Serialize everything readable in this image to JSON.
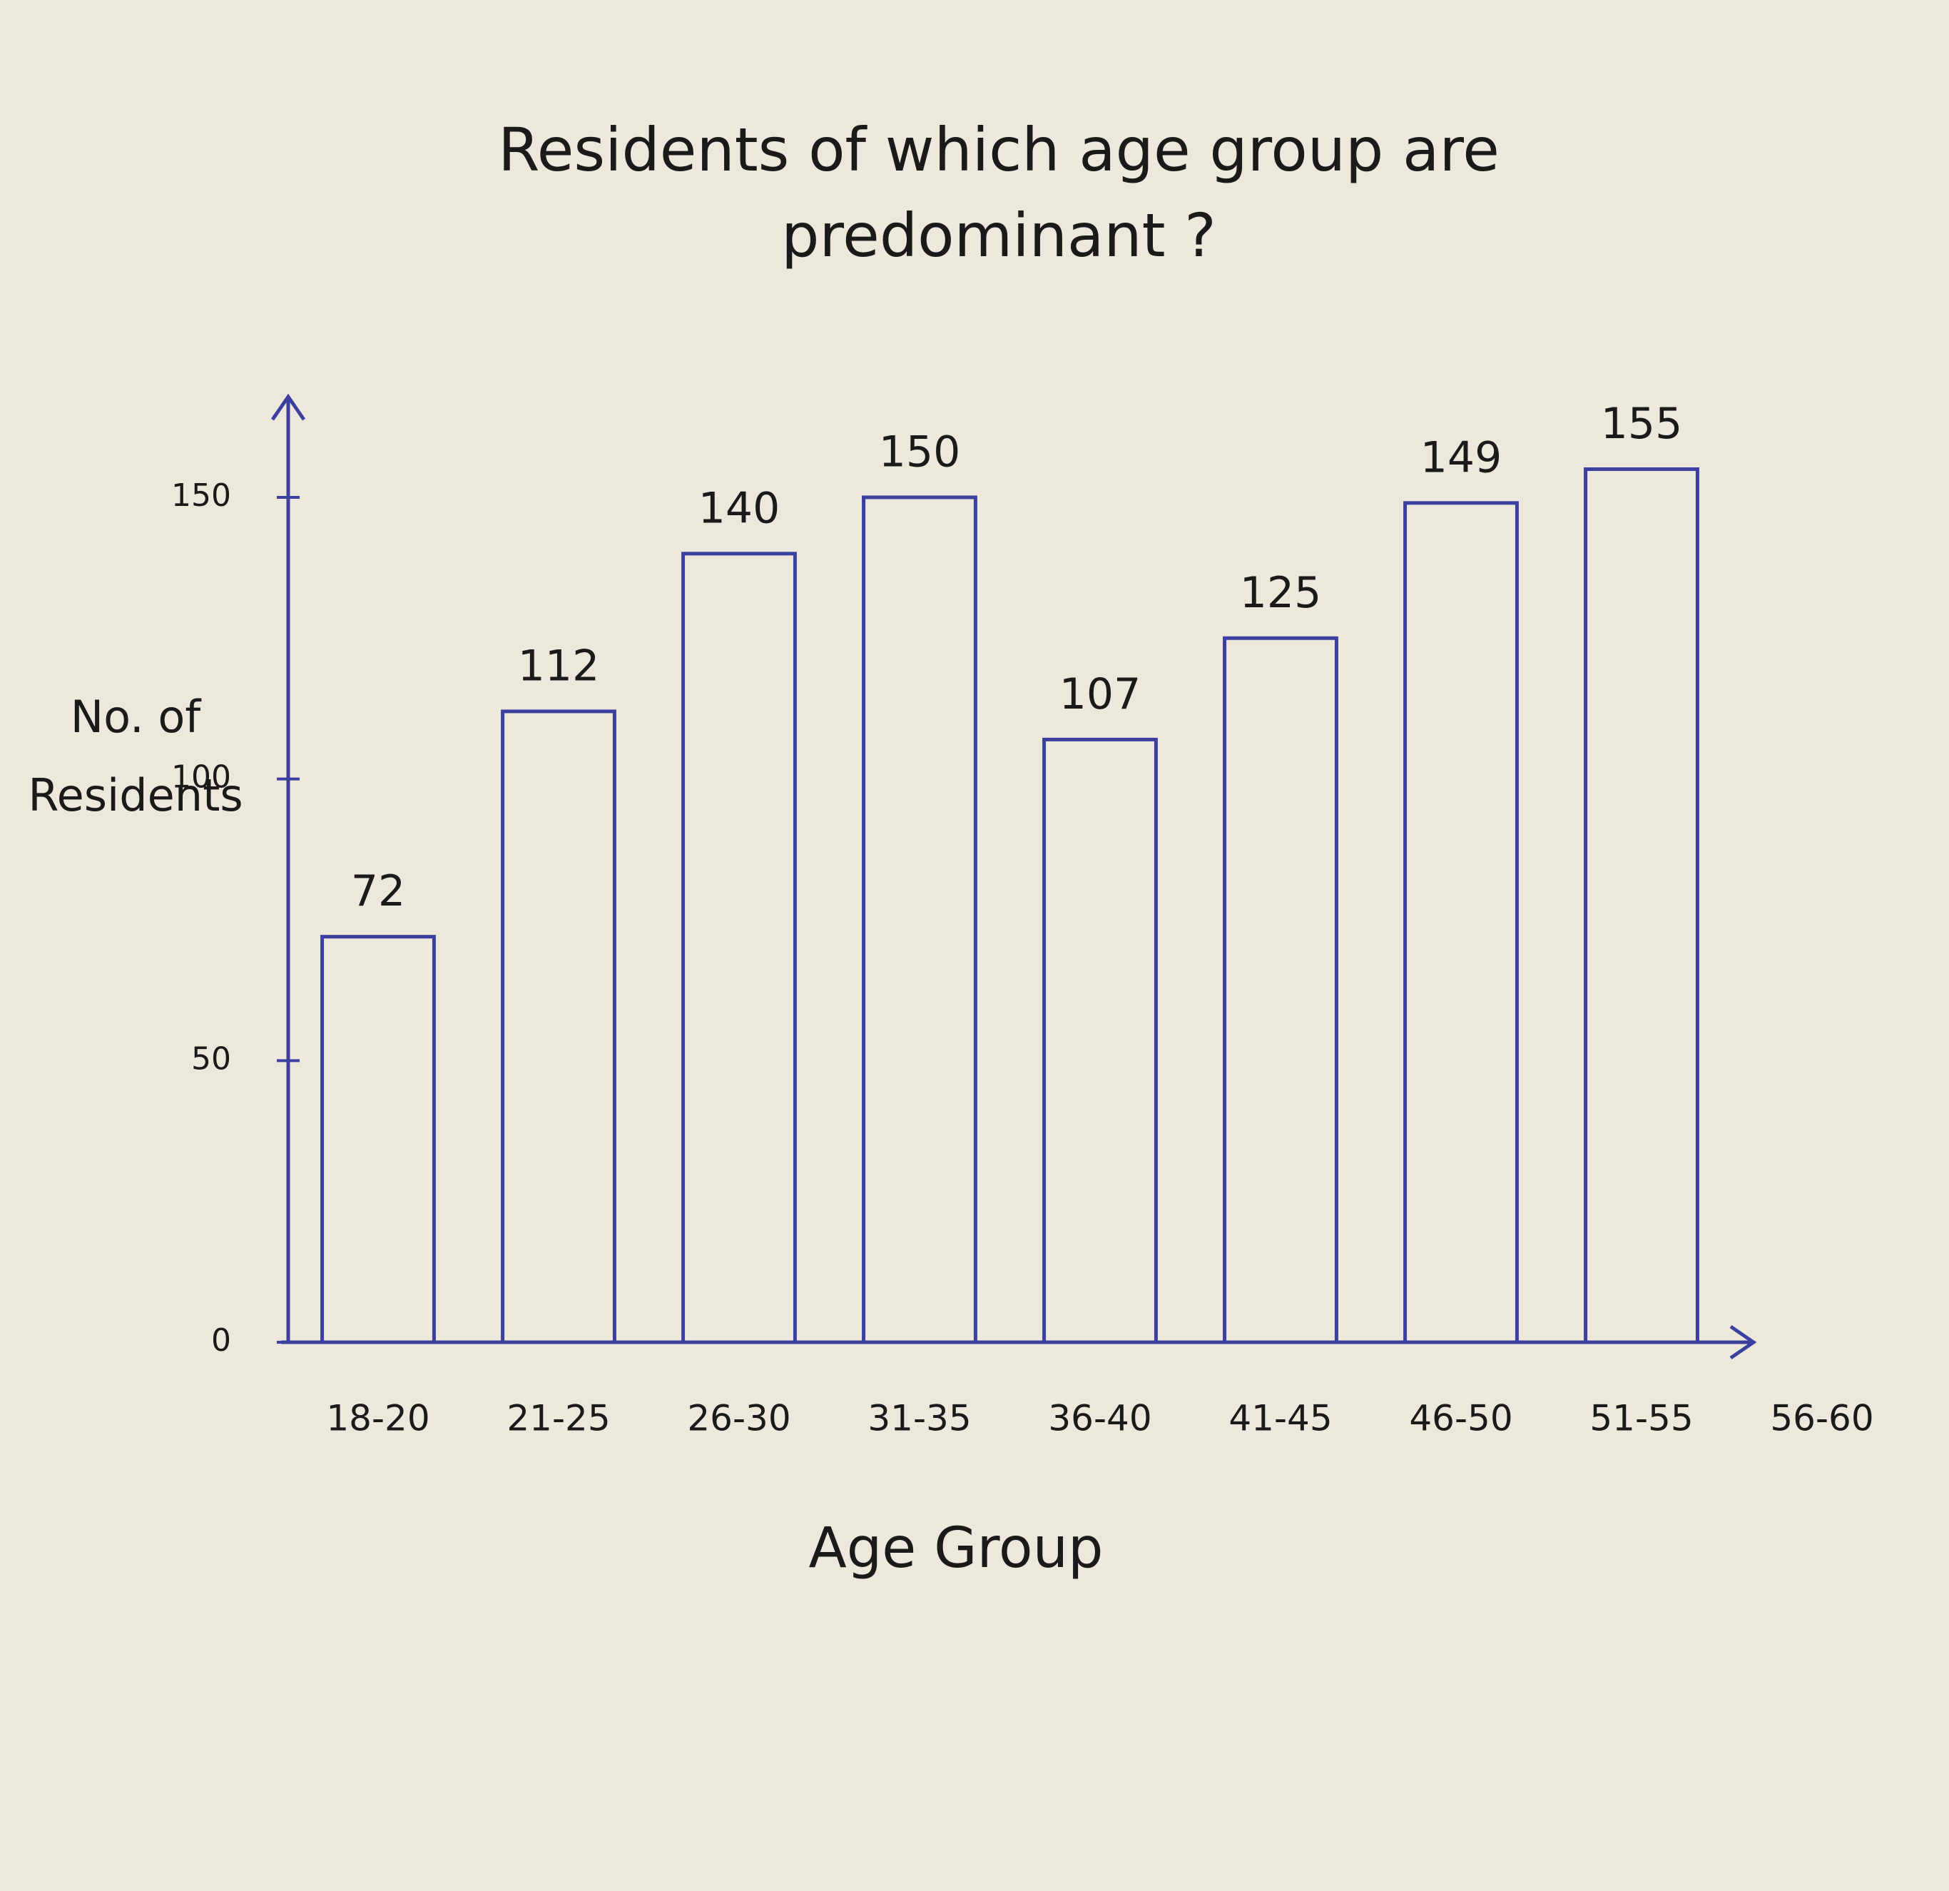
{
  "chart_data": {
    "type": "bar",
    "title": "Residents of which age group are predominant ?",
    "x_label": "Age Group",
    "y_label": "No. of Residents",
    "categories": [
      "18-20",
      "21-25",
      "26-30",
      "31-35",
      "36-40",
      "41-45",
      "46-50",
      "51-55",
      "56-60"
    ],
    "values": [
      72,
      112,
      140,
      150,
      107,
      125,
      149,
      155,
      null
    ],
    "color": "#3b40a0",
    "ylim": [
      0,
      160
    ],
    "yticks": [
      0,
      50,
      100,
      150
    ],
    "grid": false
  }
}
